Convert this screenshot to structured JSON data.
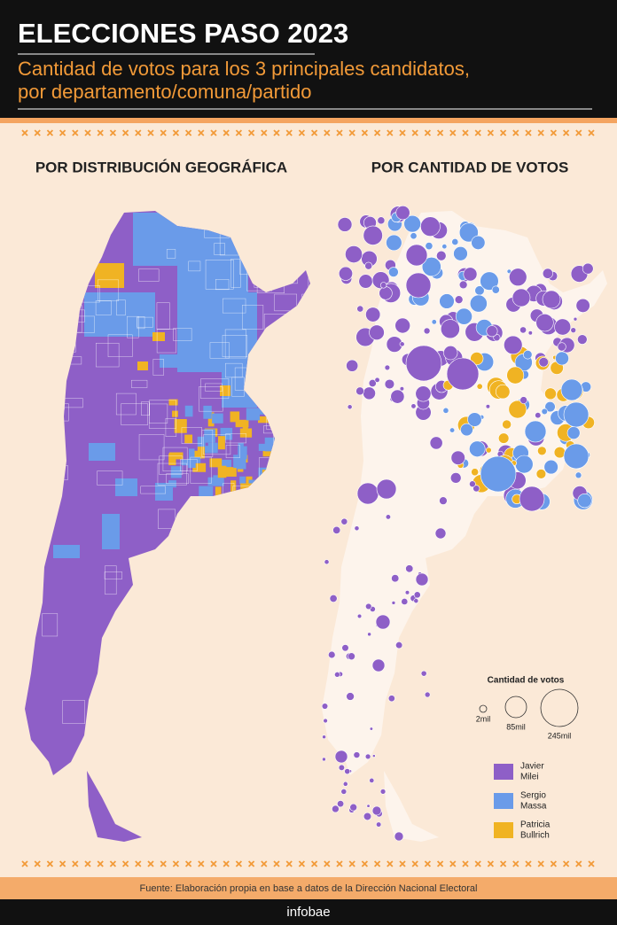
{
  "header": {
    "title": "ELECCIONES PASO 2023",
    "subtitle": [
      "Cantidad de votos para los 3 principales candidatos,",
      "por departamento/comuna/partido"
    ]
  },
  "panels": {
    "left": "POR DISTRIBUCIÓN GEOGRÁFICA",
    "right": "POR CANTIDAD DE VOTOS"
  },
  "size_legend": {
    "title": "Cantidad de votos",
    "labels": [
      "2mil",
      "85mil",
      "245mil"
    ]
  },
  "candidates": [
    {
      "name": [
        "Javier",
        "Milei"
      ],
      "color": "#8e5fc7"
    },
    {
      "name": [
        "Sergio",
        "Massa"
      ],
      "color": "#6a9be9"
    },
    {
      "name": [
        "Patricia",
        "Bullrich"
      ],
      "color": "#f0b323"
    }
  ],
  "footer": {
    "source": "Fuente: Elaboración propia en base a datos de la Dirección Nacional Electoral",
    "brand": "infobae"
  }
}
